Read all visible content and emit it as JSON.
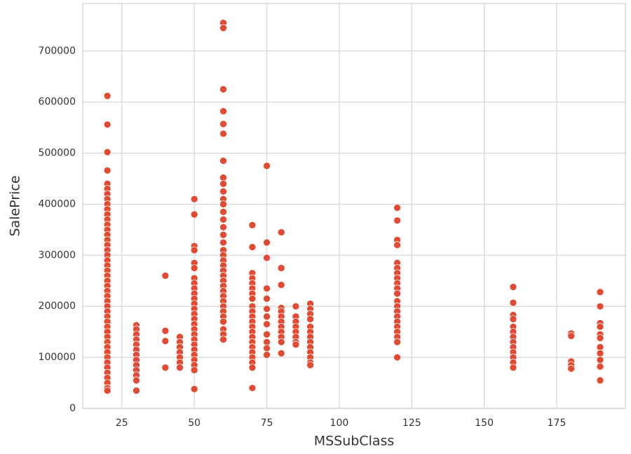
{
  "chart_data": {
    "type": "scatter",
    "x_label": "MSSubClass",
    "y_label": "SalePrice",
    "xlim": [
      11.5,
      198.7
    ],
    "ylim": [
      0,
      793000
    ],
    "xticks": [
      25,
      50,
      75,
      100,
      125,
      150,
      175
    ],
    "yticks": [
      0,
      100000,
      200000,
      300000,
      400000,
      500000,
      600000,
      700000
    ],
    "grid": true,
    "color": "#e24a33",
    "x": [
      20,
      20,
      20,
      20,
      20,
      20,
      20,
      20,
      20,
      20,
      20,
      20,
      20,
      20,
      20,
      20,
      20,
      20,
      20,
      20,
      20,
      20,
      20,
      20,
      20,
      20,
      20,
      20,
      20,
      20,
      20,
      20,
      20,
      20,
      20,
      20,
      20,
      20,
      20,
      20,
      20,
      20,
      20,
      20,
      20,
      20,
      30,
      30,
      30,
      30,
      30,
      30,
      30,
      30,
      30,
      30,
      30,
      30,
      30,
      40,
      40,
      40,
      40,
      45,
      45,
      45,
      45,
      45,
      45,
      45,
      50,
      50,
      50,
      50,
      50,
      50,
      50,
      50,
      50,
      50,
      50,
      50,
      50,
      50,
      50,
      50,
      50,
      50,
      50,
      50,
      50,
      50,
      50,
      50,
      50,
      50,
      60,
      60,
      60,
      60,
      60,
      60,
      60,
      60,
      60,
      60,
      60,
      60,
      60,
      60,
      60,
      60,
      60,
      60,
      60,
      60,
      60,
      60,
      60,
      60,
      60,
      60,
      60,
      60,
      60,
      60,
      60,
      60,
      60,
      60,
      60,
      70,
      70,
      70,
      70,
      70,
      70,
      70,
      70,
      70,
      70,
      70,
      70,
      70,
      70,
      70,
      70,
      70,
      70,
      70,
      70,
      70,
      70,
      75,
      75,
      75,
      75,
      75,
      75,
      75,
      75,
      75,
      75,
      75,
      75,
      80,
      80,
      80,
      80,
      80,
      80,
      80,
      80,
      80,
      80,
      80,
      80,
      85,
      85,
      85,
      85,
      85,
      85,
      85,
      85,
      90,
      90,
      90,
      90,
      90,
      90,
      90,
      90,
      90,
      90,
      90,
      90,
      90,
      120,
      120,
      120,
      120,
      120,
      120,
      120,
      120,
      120,
      120,
      120,
      120,
      120,
      120,
      120,
      120,
      120,
      120,
      120,
      120,
      120,
      160,
      160,
      160,
      160,
      160,
      160,
      160,
      160,
      160,
      160,
      160,
      160,
      160,
      180,
      180,
      180,
      180,
      180,
      190,
      190,
      190,
      190,
      190,
      190,
      190,
      190,
      190,
      190,
      190
    ],
    "values": [
      612000,
      556000,
      502000,
      466000,
      440000,
      430000,
      420000,
      410000,
      400000,
      390000,
      380000,
      370000,
      360000,
      350000,
      340000,
      330000,
      320000,
      310000,
      300000,
      290000,
      280000,
      270000,
      260000,
      250000,
      240000,
      230000,
      220000,
      210000,
      200000,
      190000,
      180000,
      170000,
      160000,
      150000,
      140000,
      130000,
      120000,
      110000,
      100000,
      90000,
      80000,
      70000,
      60000,
      50000,
      40000,
      35000,
      163000,
      155000,
      145000,
      135000,
      125000,
      115000,
      105000,
      95000,
      85000,
      75000,
      65000,
      55000,
      35000,
      260000,
      152000,
      132000,
      80000,
      140000,
      130000,
      120000,
      110000,
      100000,
      90000,
      80000,
      410000,
      380000,
      318000,
      310000,
      285000,
      275000,
      255000,
      245000,
      235000,
      225000,
      215000,
      205000,
      195000,
      185000,
      175000,
      165000,
      155000,
      145000,
      135000,
      125000,
      115000,
      105000,
      95000,
      85000,
      75000,
      38000,
      755000,
      745000,
      625000,
      582000,
      557000,
      538000,
      485000,
      452000,
      440000,
      425000,
      410000,
      400000,
      385000,
      370000,
      355000,
      340000,
      325000,
      310000,
      300000,
      290000,
      280000,
      270000,
      260000,
      250000,
      240000,
      230000,
      220000,
      210000,
      200000,
      190000,
      180000,
      170000,
      155000,
      145000,
      135000,
      359000,
      316000,
      265000,
      255000,
      245000,
      235000,
      225000,
      215000,
      200000,
      190000,
      180000,
      170000,
      160000,
      150000,
      140000,
      130000,
      120000,
      110000,
      100000,
      90000,
      80000,
      40000,
      475000,
      325000,
      295000,
      235000,
      215000,
      195000,
      180000,
      165000,
      145000,
      130000,
      118000,
      105000,
      345000,
      275000,
      242000,
      197000,
      190000,
      180000,
      170000,
      160000,
      150000,
      140000,
      130000,
      108000,
      200000,
      180000,
      170000,
      160000,
      150000,
      140000,
      130000,
      125000,
      205000,
      195000,
      185000,
      175000,
      160000,
      150000,
      140000,
      130000,
      120000,
      110000,
      100000,
      90000,
      85000,
      393000,
      368000,
      330000,
      320000,
      285000,
      275000,
      265000,
      255000,
      245000,
      235000,
      225000,
      210000,
      200000,
      190000,
      180000,
      170000,
      160000,
      150000,
      140000,
      130000,
      100000,
      238000,
      207000,
      183000,
      175000,
      160000,
      150000,
      140000,
      130000,
      120000,
      110000,
      100000,
      90000,
      80000,
      147000,
      142000,
      92000,
      85000,
      78000,
      228000,
      200000,
      167000,
      160000,
      145000,
      138000,
      120000,
      108000,
      95000,
      82000,
      55000
    ]
  }
}
